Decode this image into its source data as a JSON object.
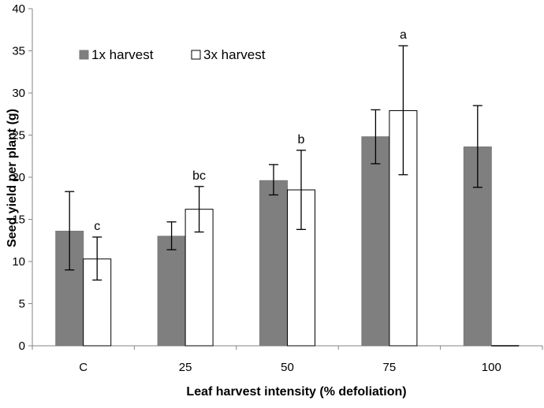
{
  "chart_data": {
    "type": "bar",
    "title": "",
    "xlabel": "Leaf harvest intensity (% defoliation)",
    "ylabel": "Seed yield per plant (g)",
    "ylim": [
      0,
      40
    ],
    "yticks": [
      "0",
      "5",
      "10",
      "15",
      "20",
      "25",
      "30",
      "35",
      "40"
    ],
    "categories": [
      "C",
      "25",
      "50",
      "75",
      "100"
    ],
    "series": [
      {
        "name": "1x harvest",
        "color": "#7f7f7f",
        "values": [
          13.6,
          13.0,
          19.6,
          24.8,
          23.6
        ],
        "error_low": [
          9.0,
          11.4,
          17.9,
          21.6,
          18.8
        ],
        "error_high": [
          18.3,
          14.7,
          21.5,
          28.0,
          28.5
        ]
      },
      {
        "name": "3x harvest",
        "color": "#ffffff",
        "values": [
          10.3,
          16.2,
          18.5,
          27.9,
          0
        ],
        "error_low": [
          7.8,
          13.5,
          13.8,
          20.3,
          null
        ],
        "error_high": [
          12.9,
          18.9,
          23.2,
          35.6,
          null
        ]
      }
    ],
    "annotations": [
      "c",
      "bc",
      "b",
      "a",
      ""
    ],
    "legend_position": "top-left",
    "grid": false
  }
}
